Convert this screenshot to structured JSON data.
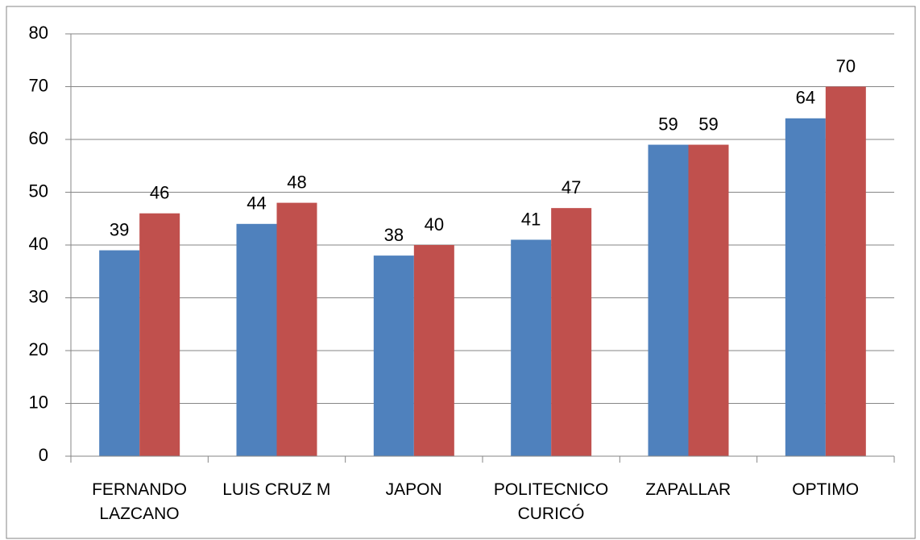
{
  "chart_data": {
    "type": "bar",
    "categories": [
      "FERNANDO\nLAZCANO",
      "LUIS CRUZ M",
      "JAPON",
      "POLITECNICO\nCURICÓ",
      "ZAPALLAR",
      "OPTIMO"
    ],
    "series": [
      {
        "color": "#4f81bd",
        "values": [
          39,
          44,
          38,
          41,
          59,
          64
        ]
      },
      {
        "color": "#c0504d",
        "values": [
          46,
          48,
          40,
          47,
          59,
          70
        ]
      }
    ],
    "ylim": [
      0,
      80
    ],
    "yticks": [
      0,
      10,
      20,
      30,
      40,
      50,
      60,
      70,
      80
    ],
    "grid": true
  }
}
